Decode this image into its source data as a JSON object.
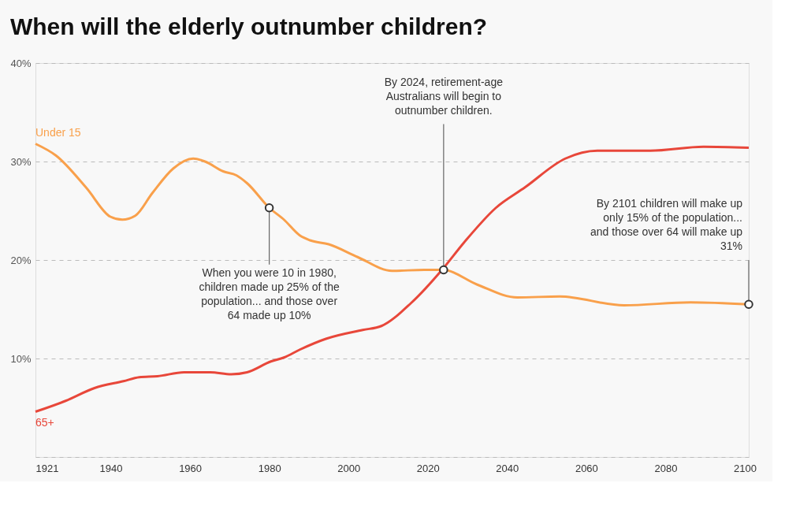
{
  "chart_data": {
    "type": "line",
    "title": "When will the elderly outnumber children?",
    "xlim": [
      1921,
      2101
    ],
    "xticks": [
      1921,
      1940,
      1960,
      1980,
      2000,
      2020,
      2040,
      2060,
      2080,
      2100
    ],
    "ylim": [
      0,
      40
    ],
    "yticks": [
      {
        "value": 0,
        "label": null
      },
      {
        "value": 10,
        "label": "10%"
      },
      {
        "value": 20,
        "label": "20%"
      },
      {
        "value": 30,
        "label": "30%"
      },
      {
        "value": 40,
        "label": "40%"
      }
    ],
    "grid": "y",
    "legend": false,
    "marker": "none",
    "line_style": "solid",
    "series": [
      {
        "name": "Under 15",
        "color": "#f9a04b",
        "x": [
          1921,
          1926.2,
          1933.9,
          1939.9,
          1942.9,
          1946.2,
          1950.5,
          1955.8,
          1960.8,
          1963.8,
          1968.4,
          1971.7,
          1974.4,
          1980,
          1983.7,
          1987.7,
          1990.3,
          1995,
          2002.3,
          2011,
          2019.1,
          2023.8,
          2032.5,
          2042.6,
          2053.3,
          2069.5,
          2086.3,
          2101
        ],
        "values": [
          31.8,
          30.6,
          27.3,
          24.4,
          24.1,
          24.5,
          26.8,
          29.3,
          30.3,
          30.0,
          29.0,
          28.6,
          27.8,
          25.3,
          24.1,
          22.5,
          22.0,
          21.6,
          20.3,
          18.9,
          19.0,
          19.0,
          17.5,
          16.2,
          16.3,
          15.4,
          15.7,
          15.5
        ]
      },
      {
        "name": "65+",
        "color": "#e8473a",
        "x": [
          1921,
          1928.6,
          1935.9,
          1943.2,
          1947.2,
          1951.8,
          1958.5,
          1965.1,
          1970.4,
          1974.4,
          1980.4,
          1983.7,
          1987.7,
          1994.3,
          2003.6,
          2008.3,
          2015.7,
          2023.8,
          2029.2,
          2037.2,
          2044.6,
          2054.7,
          2062.8,
          2076.2,
          2089.6,
          2101
        ],
        "values": [
          4.6,
          5.7,
          7.0,
          7.7,
          8.1,
          8.2,
          8.6,
          8.6,
          8.4,
          8.6,
          9.7,
          10.1,
          10.9,
          12.0,
          12.9,
          13.3,
          15.6,
          19.1,
          21.8,
          25.3,
          27.4,
          30.3,
          31.1,
          31.1,
          31.5,
          31.4
        ]
      }
    ],
    "annotations": [
      {
        "text": "When you were 10 in 1980, children made up 25% of the population... and those over 64 made up 10%",
        "x": 1980,
        "y": 25.3
      },
      {
        "text": "By 2024, retirement-age Australians will begin to outnumber children.",
        "x": 2024,
        "y": 19.0
      },
      {
        "text": "By 2101 children will make up only 15% of the population... and those over 64 will make up 31%",
        "x": 2101,
        "y": 15.5
      }
    ]
  }
}
